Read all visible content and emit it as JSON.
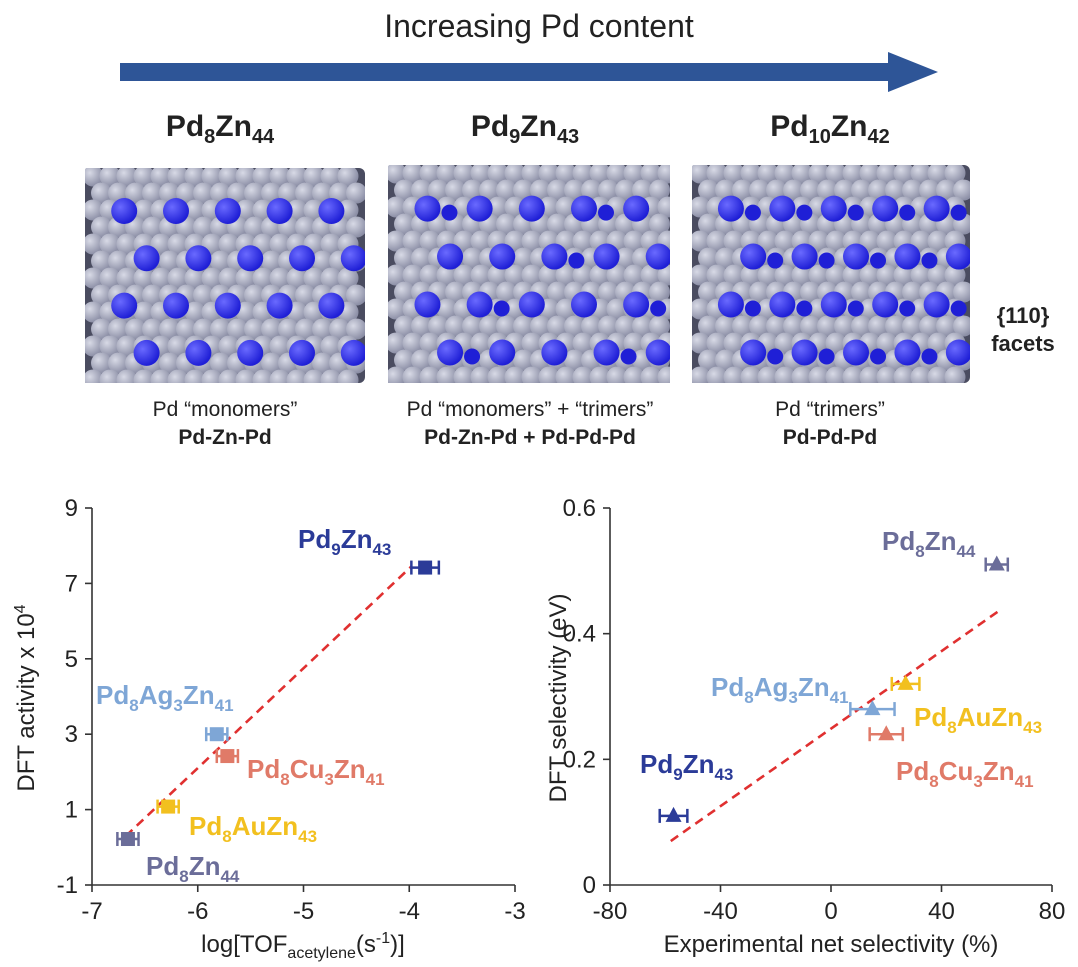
{
  "header": {
    "arrow_label": "Increasing Pd content",
    "arrow_color": "#2e5597"
  },
  "structures": [
    {
      "formula": {
        "a": "Pd",
        "a_sub": "8",
        "b": "Zn",
        "b_sub": "44"
      },
      "caption_line1": "Pd “monomers”",
      "caption_line2": "Pd-Zn-Pd",
      "pd_level": 1
    },
    {
      "formula": {
        "a": "Pd",
        "a_sub": "9",
        "b": "Zn",
        "b_sub": "43"
      },
      "caption_line1": "Pd “monomers” + “trimers”",
      "caption_line2": "Pd-Zn-Pd + Pd-Pd-Pd",
      "pd_level": 2
    },
    {
      "formula": {
        "a": "Pd",
        "a_sub": "10",
        "b": "Zn",
        "b_sub": "42"
      },
      "caption_line1": "Pd “trimers”",
      "caption_line2": "Pd-Pd-Pd",
      "pd_level": 3
    }
  ],
  "facet_label": {
    "line1": "{110}",
    "line2": "facets"
  },
  "atom_colors": {
    "zn": "#8c8fa6",
    "pd": "#1f1fd6"
  },
  "chart_data": [
    {
      "type": "scatter",
      "xlabel": "log[TOF",
      "xlabel_sub": "acetylene",
      "xlabel_tail": "(s",
      "xlabel_sup": "-1",
      "xlabel_end": ")]",
      "ylabel": "DFT activity x 10",
      "ylabel_sup": "4",
      "xlim": [
        -7,
        -3
      ],
      "ylim": [
        -1,
        9
      ],
      "xticks": [
        -7,
        -6,
        -5,
        -4,
        -3
      ],
      "yticks": [
        -1,
        1,
        3,
        5,
        7,
        9
      ],
      "marker": "square",
      "fit_line": {
        "x": [
          -6.68,
          -3.98
        ],
        "y": [
          0.3,
          7.45
        ],
        "color": "#e03030"
      },
      "points": [
        {
          "label": "Pd9Zn43",
          "label_main": [
            "Pd",
            "9",
            "Zn",
            "43"
          ],
          "x": -3.85,
          "y": 7.42,
          "xerr": 0.13,
          "color": "#2b3b98"
        },
        {
          "label": "Pd8Ag3Zn41",
          "label_main": [
            "Pd",
            "8",
            "Ag",
            "3",
            "Zn",
            "41"
          ],
          "x": -5.82,
          "y": 3.0,
          "xerr": 0.1,
          "color": "#7ea6d6"
        },
        {
          "label": "Pd8Cu3Zn41",
          "label_main": [
            "Pd",
            "8",
            "Cu",
            "3",
            "Zn",
            "41"
          ],
          "x": -5.72,
          "y": 2.42,
          "xerr": 0.1,
          "color": "#e07a68"
        },
        {
          "label": "Pd8AuZn43",
          "label_main": [
            "Pd",
            "8",
            "AuZn",
            "43"
          ],
          "x": -6.28,
          "y": 1.08,
          "xerr": 0.1,
          "color": "#f2c01f"
        },
        {
          "label": "Pd8Zn44",
          "label_main": [
            "Pd",
            "8",
            "Zn",
            "44"
          ],
          "x": -6.66,
          "y": 0.22,
          "xerr": 0.1,
          "color": "#6b6d99"
        }
      ]
    },
    {
      "type": "scatter",
      "xlabel": "Experimental  net selectivity (%)",
      "ylabel": "DFT selectivity (eV)",
      "xlim": [
        -80,
        80
      ],
      "ylim": [
        0,
        0.6
      ],
      "xticks": [
        -80,
        -40,
        0,
        40,
        80
      ],
      "yticks": [
        0,
        0.2,
        0.4,
        0.6
      ],
      "marker": "triangle",
      "fit_line": {
        "x": [
          -58,
          62
        ],
        "y": [
          0.07,
          0.44
        ],
        "color": "#e03030"
      },
      "points": [
        {
          "label": "Pd8Zn44",
          "label_main": [
            "Pd",
            "8",
            "Zn",
            "44"
          ],
          "x": 60,
          "y": 0.51,
          "xerr": 4,
          "color": "#6b6d99"
        },
        {
          "label": "Pd8Ag3Zn41",
          "label_main": [
            "Pd",
            "8",
            "Ag",
            "3",
            "Zn",
            "41"
          ],
          "x": 15,
          "y": 0.28,
          "xerr": 8,
          "color": "#7ea6d6"
        },
        {
          "label": "Pd8AuZn43",
          "label_main": [
            "Pd",
            "8",
            "AuZn",
            "43"
          ],
          "x": 27,
          "y": 0.32,
          "xerr": 5,
          "color": "#f2c01f"
        },
        {
          "label": "Pd8Cu3Zn41",
          "label_main": [
            "Pd",
            "8",
            "Cu",
            "3",
            "Zn",
            "41"
          ],
          "x": 20,
          "y": 0.24,
          "xerr": 6,
          "color": "#e07a68"
        },
        {
          "label": "Pd9Zn43",
          "label_main": [
            "Pd",
            "9",
            "Zn",
            "43"
          ],
          "x": -57,
          "y": 0.11,
          "xerr": 5,
          "color": "#2b3b98"
        }
      ]
    }
  ]
}
